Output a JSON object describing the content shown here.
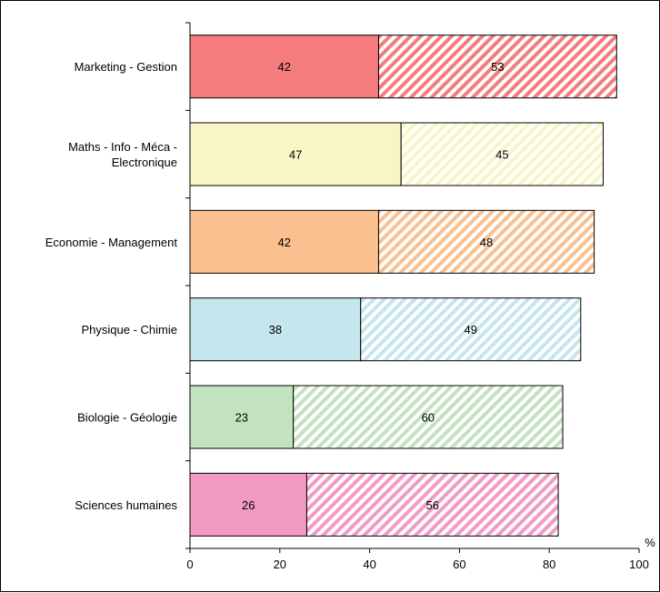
{
  "chart_data": {
    "type": "bar",
    "orientation": "horizontal",
    "stacked": true,
    "categories": [
      [
        "Marketing - Gestion"
      ],
      [
        "Maths - Info - Méca -",
        "Electronique"
      ],
      [
        "Economie - Management"
      ],
      [
        "Physique - Chimie"
      ],
      [
        "Biologie - Géologie"
      ],
      [
        "Sciences humaines"
      ]
    ],
    "series": [
      {
        "values": [
          42,
          47,
          42,
          38,
          23,
          26
        ],
        "fill": "solid"
      },
      {
        "values": [
          53,
          45,
          48,
          49,
          60,
          56
        ],
        "fill": "hatched"
      }
    ],
    "colors": [
      "#f47c7c",
      "#f8f6c4",
      "#fbc08f",
      "#c5e6ec",
      "#c3e2bf",
      "#f39ac4"
    ],
    "xlim": [
      0,
      100
    ],
    "xticks": [
      0,
      20,
      40,
      60,
      80,
      100
    ],
    "xunit": "%",
    "grid": false,
    "legend": "none"
  }
}
